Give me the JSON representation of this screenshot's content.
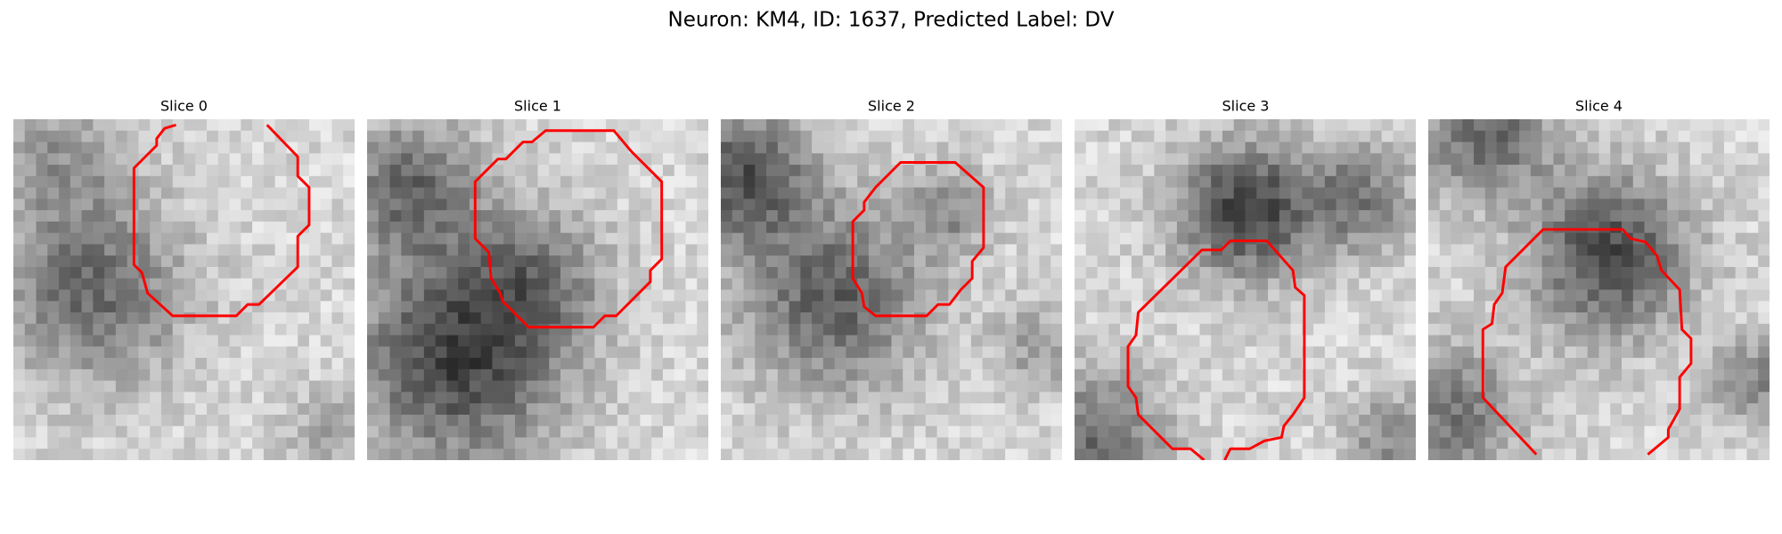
{
  "title": "Neuron: KM4, ID: 1637, Predicted Label: DV",
  "panels": [
    {
      "title": "Slice 0"
    },
    {
      "title": "Slice 1"
    },
    {
      "title": "Slice 2"
    },
    {
      "title": "Slice 3"
    },
    {
      "title": "Slice 4"
    }
  ]
}
